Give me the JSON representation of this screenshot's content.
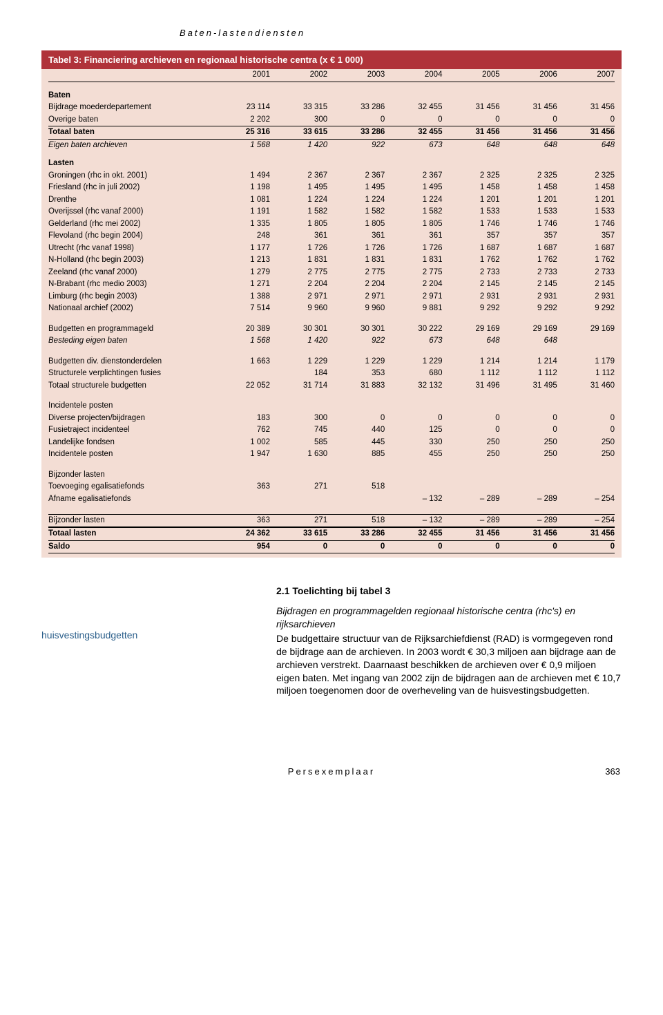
{
  "running_head": "Baten-lastendiensten",
  "table": {
    "title": "Tabel 3: Financiering archieven en regionaal historische centra (x € 1 000)",
    "years": [
      "2001",
      "2002",
      "2003",
      "2004",
      "2005",
      "2006",
      "2007"
    ],
    "rows": [
      {
        "label": "Baten",
        "style": "section-head",
        "vals": [
          "",
          "",
          "",
          "",
          "",
          "",
          ""
        ]
      },
      {
        "label": "Bijdrage moederdepartement",
        "vals": [
          "23 114",
          "33 315",
          "33 286",
          "32 455",
          "31 456",
          "31 456",
          "31 456"
        ]
      },
      {
        "label": "Overige baten",
        "vals": [
          "2 202",
          "300",
          "0",
          "0",
          "0",
          "0",
          "0"
        ]
      },
      {
        "label": "Totaal baten",
        "style": "bold rule-thin",
        "vals": [
          "25 316",
          "33 615",
          "33 286",
          "32 455",
          "31 456",
          "31 456",
          "31 456"
        ]
      },
      {
        "label": "Eigen baten archieven",
        "style": "italic rule-thin",
        "vals": [
          "1 568",
          "1 420",
          "922",
          "673",
          "648",
          "648",
          "648"
        ]
      },
      {
        "label": "Lasten",
        "style": "section-head",
        "vals": [
          "",
          "",
          "",
          "",
          "",
          "",
          ""
        ]
      },
      {
        "label": "Groningen (rhc in okt. 2001)",
        "vals": [
          "1 494",
          "2 367",
          "2 367",
          "2 367",
          "2 325",
          "2 325",
          "2 325"
        ]
      },
      {
        "label": "Friesland (rhc in juli 2002)",
        "vals": [
          "1 198",
          "1 495",
          "1 495",
          "1 495",
          "1 458",
          "1 458",
          "1 458"
        ]
      },
      {
        "label": "Drenthe",
        "vals": [
          "1 081",
          "1 224",
          "1 224",
          "1 224",
          "1 201",
          "1 201",
          "1 201"
        ]
      },
      {
        "label": "Overijssel (rhc vanaf 2000)",
        "vals": [
          "1 191",
          "1 582",
          "1 582",
          "1 582",
          "1 533",
          "1 533",
          "1 533"
        ]
      },
      {
        "label": "Gelderland (rhc mei 2002)",
        "vals": [
          "1 335",
          "1 805",
          "1 805",
          "1 805",
          "1 746",
          "1 746",
          "1 746"
        ]
      },
      {
        "label": "Flevoland (rhc begin 2004)",
        "vals": [
          "248",
          "361",
          "361",
          "361",
          "357",
          "357",
          "357"
        ]
      },
      {
        "label": "Utrecht (rhc vanaf 1998)",
        "vals": [
          "1 177",
          "1 726",
          "1 726",
          "1 726",
          "1 687",
          "1 687",
          "1 687"
        ]
      },
      {
        "label": "N-Holland (rhc begin 2003)",
        "vals": [
          "1 213",
          "1 831",
          "1 831",
          "1 831",
          "1 762",
          "1 762",
          "1 762"
        ]
      },
      {
        "label": "Zeeland (rhc vanaf 2000)",
        "vals": [
          "1 279",
          "2 775",
          "2 775",
          "2 775",
          "2 733",
          "2 733",
          "2 733"
        ]
      },
      {
        "label": "N-Brabant (rhc medio 2003)",
        "vals": [
          "1 271",
          "2 204",
          "2 204",
          "2 204",
          "2 145",
          "2 145",
          "2 145"
        ]
      },
      {
        "label": "Limburg (rhc begin 2003)",
        "vals": [
          "1 388",
          "2 971",
          "2 971",
          "2 971",
          "2 931",
          "2 931",
          "2 931"
        ]
      },
      {
        "label": "Nationaal archief (2002)",
        "vals": [
          "7 514",
          "9 960",
          "9 960",
          "9 881",
          "9 292",
          "9 292",
          "9 292"
        ]
      },
      {
        "style": "spacer",
        "label": "",
        "vals": [
          "",
          "",
          "",
          "",
          "",
          "",
          ""
        ]
      },
      {
        "label": "Budgetten en programmageld",
        "vals": [
          "20 389",
          "30 301",
          "30 301",
          "30 222",
          "29 169",
          "29 169",
          "29 169"
        ]
      },
      {
        "label": "Besteding eigen baten",
        "style": "italic",
        "vals": [
          "1 568",
          "1 420",
          "922",
          "673",
          "648",
          "648",
          ""
        ]
      },
      {
        "style": "spacer",
        "label": "",
        "vals": [
          "",
          "",
          "",
          "",
          "",
          "",
          ""
        ]
      },
      {
        "label": "Budgetten div. dienstonderdelen",
        "vals": [
          "1 663",
          "1 229",
          "1 229",
          "1 229",
          "1 214",
          "1 214",
          "1 179"
        ]
      },
      {
        "label": "Structurele verplichtingen fusies",
        "vals": [
          "",
          "184",
          "353",
          "680",
          "1 112",
          "1 112",
          "1 112"
        ]
      },
      {
        "label": "Totaal structurele budgetten",
        "vals": [
          "22 052",
          "31 714",
          "31 883",
          "32 132",
          "31 496",
          "31 495",
          "31 460"
        ]
      },
      {
        "style": "spacer",
        "label": "",
        "vals": [
          "",
          "",
          "",
          "",
          "",
          "",
          ""
        ]
      },
      {
        "label": "Incidentele posten",
        "vals": [
          "",
          "",
          "",
          "",
          "",
          "",
          ""
        ]
      },
      {
        "label": "Diverse projecten/bijdragen",
        "vals": [
          "183",
          "300",
          "0",
          "0",
          "0",
          "0",
          "0"
        ]
      },
      {
        "label": "Fusietraject incidenteel",
        "vals": [
          "762",
          "745",
          "440",
          "125",
          "0",
          "0",
          "0"
        ]
      },
      {
        "label": "Landelijke fondsen",
        "vals": [
          "1 002",
          "585",
          "445",
          "330",
          "250",
          "250",
          "250"
        ]
      },
      {
        "label": "Incidentele posten",
        "vals": [
          "1 947",
          "1 630",
          "885",
          "455",
          "250",
          "250",
          "250"
        ]
      },
      {
        "style": "spacer",
        "label": "",
        "vals": [
          "",
          "",
          "",
          "",
          "",
          "",
          ""
        ]
      },
      {
        "label": "Bijzonder lasten",
        "vals": [
          "",
          "",
          "",
          "",
          "",
          "",
          ""
        ]
      },
      {
        "label": "Toevoeging egalisatiefonds",
        "vals": [
          "363",
          "271",
          "518",
          "",
          "",
          "",
          ""
        ]
      },
      {
        "label": "Afname egalisatiefonds",
        "vals": [
          "",
          "",
          "",
          "– 132",
          "– 289",
          "– 289",
          "– 254"
        ]
      },
      {
        "style": "spacer",
        "label": "",
        "vals": [
          "",
          "",
          "",
          "",
          "",
          "",
          ""
        ]
      },
      {
        "label": "Bijzonder lasten",
        "style": "rule-thin",
        "vals": [
          "363",
          "271",
          "518",
          "– 132",
          "– 289",
          "– 289",
          "– 254"
        ]
      },
      {
        "label": "Totaal lasten",
        "style": "bold rule-thick-top",
        "vals": [
          "24 362",
          "33 615",
          "33 286",
          "32 455",
          "31 456",
          "31 456",
          "31 456"
        ]
      },
      {
        "label": "Saldo",
        "style": "bold rule-thin",
        "vals": [
          "954",
          "0",
          "0",
          "0",
          "0",
          "0",
          "0"
        ]
      }
    ]
  },
  "section_title": "2.1 Toelichting bij tabel 3",
  "margin_note": "huisvestingsbudgetten",
  "para_italic": "Bijdragen en programmagelden regionaal historische centra (rhc's) en rijksarchieven",
  "para_body": "De budgettaire structuur van de Rijksarchiefdienst (RAD) is vormgegeven rond de bijdrage aan de archieven. In 2003 wordt € 30,3 miljoen aan bijdrage aan de archieven verstrekt. Daarnaast beschikken de archieven over € 0,9 miljoen eigen baten. Met ingang van 2002 zijn de bijdragen aan de archieven met € 10,7 miljoen toegenomen door de overheveling van de huisvestingsbudgetten.",
  "footer_center": "Persexemplaar",
  "footer_page": "363",
  "colors": {
    "header_bar_bg": "#b0333a",
    "table_bg": "#f3ddd4",
    "margin_note_color": "#2a5e8a"
  }
}
